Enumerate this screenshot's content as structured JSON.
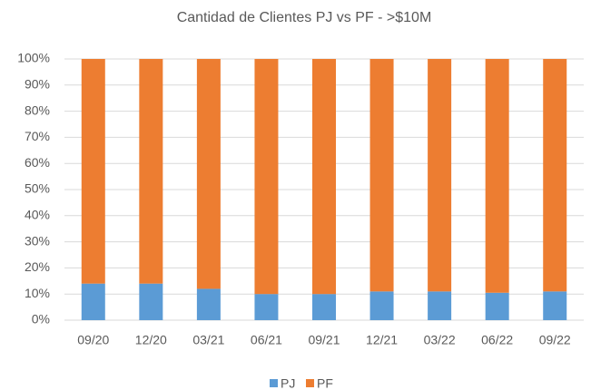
{
  "chart_data": {
    "type": "stacked_bar",
    "title": "Cantidad de Clientes PJ vs PF - >$10M",
    "categories": [
      "09/20",
      "12/20",
      "03/21",
      "06/21",
      "09/21",
      "12/21",
      "03/22",
      "06/22",
      "09/22"
    ],
    "series": [
      {
        "name": "PJ",
        "color": "#5b9bd5",
        "values": [
          14,
          14,
          12,
          10,
          10,
          11,
          11,
          10.5,
          11
        ]
      },
      {
        "name": "PF",
        "color": "#ed7d31",
        "values": [
          86,
          86,
          88,
          90,
          90,
          89,
          89,
          89.5,
          89
        ]
      }
    ],
    "ylim": [
      0,
      100
    ],
    "yticks": [
      {
        "value": 0,
        "label": "0%"
      },
      {
        "value": 10,
        "label": "10%"
      },
      {
        "value": 20,
        "label": "20%"
      },
      {
        "value": 30,
        "label": "30%"
      },
      {
        "value": 40,
        "label": "40%"
      },
      {
        "value": 50,
        "label": "50%"
      },
      {
        "value": 60,
        "label": "60%"
      },
      {
        "value": 70,
        "label": "70%"
      },
      {
        "value": 80,
        "label": "80%"
      },
      {
        "value": 90,
        "label": "90%"
      },
      {
        "value": 100,
        "label": "100%"
      }
    ],
    "grid": true,
    "legend": "bottom"
  }
}
